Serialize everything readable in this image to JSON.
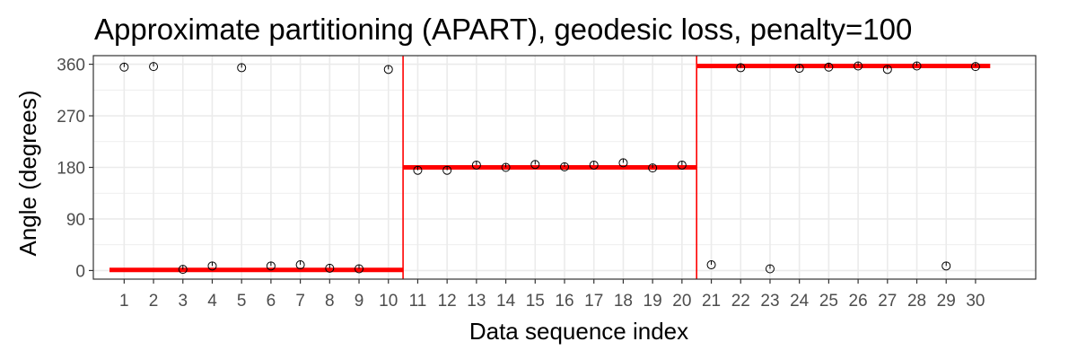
{
  "chart_data": {
    "type": "scatter",
    "title": "Approximate partitioning (APART), geodesic loss, penalty=100",
    "xlabel": "Data sequence index",
    "ylabel": "Angle (degrees)",
    "xlim": [
      -0.05,
      32.05
    ],
    "ylim": [
      -15,
      375
    ],
    "x_ticks": [
      1,
      2,
      3,
      4,
      5,
      6,
      7,
      8,
      9,
      10,
      11,
      12,
      13,
      14,
      15,
      16,
      17,
      18,
      19,
      20,
      21,
      22,
      23,
      24,
      25,
      26,
      27,
      28,
      29,
      30
    ],
    "y_ticks": [
      0,
      90,
      180,
      270,
      360
    ],
    "grid": true,
    "points": {
      "x": [
        1,
        2,
        3,
        4,
        5,
        6,
        7,
        8,
        9,
        10,
        11,
        12,
        13,
        14,
        15,
        16,
        17,
        18,
        19,
        20,
        21,
        22,
        23,
        24,
        25,
        26,
        27,
        28,
        29,
        30
      ],
      "y": [
        355,
        356,
        2,
        8,
        354,
        8,
        10,
        4,
        3,
        351,
        175,
        175,
        184,
        180,
        185,
        181,
        184,
        188,
        179,
        184,
        10,
        354,
        3,
        353,
        355,
        357,
        351,
        357,
        8,
        356
      ]
    },
    "segments": [
      {
        "x_start": 0.5,
        "x_end": 10.5,
        "y": 1
      },
      {
        "x_start": 10.5,
        "x_end": 20.5,
        "y": 180
      },
      {
        "x_start": 20.5,
        "x_end": 30.5,
        "y": 357
      }
    ],
    "change_points": [
      10.5,
      20.5
    ],
    "colors": {
      "segment": "#ff0000",
      "points": "#000000",
      "grid": "#ebebeb",
      "panel_border": "#333333"
    }
  }
}
